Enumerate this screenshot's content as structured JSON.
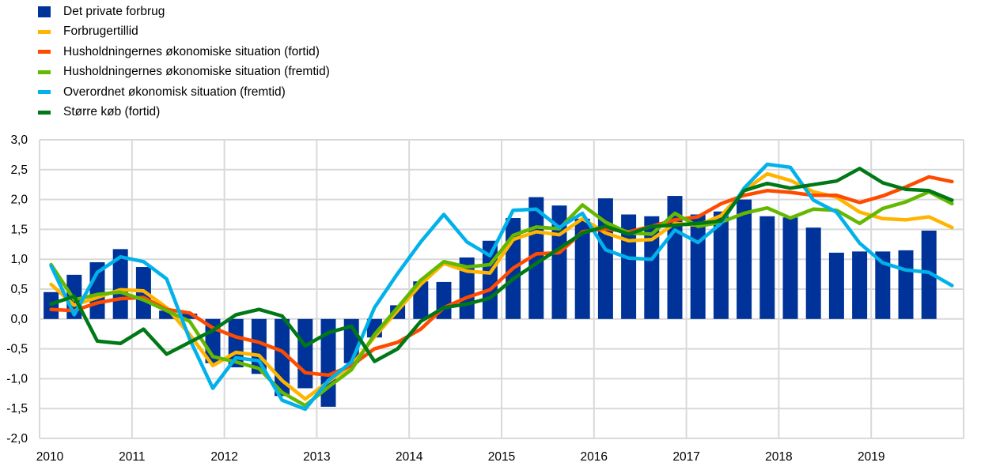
{
  "chart_data": {
    "type": "bar+line",
    "title": "",
    "xlabel": "",
    "ylabel": "",
    "ylim": [
      -2.0,
      3.0
    ],
    "yticks": [
      "3,0",
      "2,5",
      "2,0",
      "1,5",
      "1,0",
      "0,5",
      "0,0",
      "-0,5",
      "-1,0",
      "-1,5",
      "-2,0"
    ],
    "ytick_values": [
      3,
      2.5,
      2,
      1.5,
      1,
      0.5,
      0,
      -0.5,
      -1,
      -1.5,
      -2
    ],
    "xticks": [
      "2010",
      "2011",
      "2012",
      "2013",
      "2014",
      "2015",
      "2016",
      "2017",
      "2018",
      "2019"
    ],
    "x_frequency": "quarterly",
    "x_start": "2010Q1",
    "grid": true,
    "legend_placement": "top-left",
    "bar_series": {
      "name": "Det private forbrug",
      "color": "#003399",
      "values": [
        0.45,
        0.74,
        0.95,
        1.17,
        0.87,
        0.14,
        0.09,
        -0.74,
        -0.81,
        -0.92,
        -1.29,
        -1.16,
        -1.47,
        -0.74,
        -0.31,
        0.23,
        0.63,
        0.62,
        1.03,
        1.31,
        1.69,
        2.04,
        1.9,
        1.68,
        2.02,
        1.75,
        1.72,
        2.06,
        1.75,
        1.8,
        2.0,
        1.72,
        1.7,
        1.53,
        1.11,
        1.13,
        1.13,
        1.15,
        1.48
      ]
    },
    "series": [
      {
        "name": "Forbrugertillid",
        "color": "#FFB400",
        "values": [
          0.58,
          0.23,
          0.36,
          0.49,
          0.47,
          0.19,
          -0.26,
          -0.78,
          -0.56,
          -0.61,
          -1.03,
          -1.34,
          -1.05,
          -0.78,
          -0.3,
          0.14,
          0.58,
          0.93,
          0.8,
          0.77,
          1.33,
          1.46,
          1.41,
          1.68,
          1.44,
          1.31,
          1.33,
          1.6,
          1.57,
          1.73,
          2.15,
          2.43,
          2.32,
          2.13,
          2.04,
          1.79,
          1.68,
          1.66,
          1.71,
          1.53
        ]
      },
      {
        "name": "Husholdningernes økonomiske situation (fortid)",
        "color": "#FF4B00",
        "values": [
          0.16,
          0.14,
          0.27,
          0.34,
          0.36,
          0.16,
          0.1,
          -0.15,
          -0.3,
          -0.39,
          -0.54,
          -0.9,
          -0.94,
          -0.78,
          -0.5,
          -0.39,
          -0.17,
          0.19,
          0.36,
          0.49,
          0.85,
          1.09,
          1.11,
          1.46,
          1.51,
          1.46,
          1.55,
          1.66,
          1.71,
          1.93,
          2.07,
          2.15,
          2.12,
          2.07,
          2.07,
          1.95,
          2.06,
          2.21,
          2.38,
          2.3
        ]
      },
      {
        "name": "Husholdningernes økonomiske situation (fremtid)",
        "color": "#65B800",
        "values": [
          0.91,
          0.32,
          0.41,
          0.45,
          0.32,
          0.14,
          -0.04,
          -0.63,
          -0.72,
          -0.83,
          -1.23,
          -1.45,
          -1.14,
          -0.85,
          -0.26,
          0.19,
          0.65,
          0.96,
          0.87,
          0.91,
          1.4,
          1.54,
          1.51,
          1.91,
          1.62,
          1.44,
          1.42,
          1.77,
          1.55,
          1.62,
          1.77,
          1.86,
          1.69,
          1.84,
          1.82,
          1.6,
          1.85,
          1.96,
          2.13,
          1.93
        ]
      },
      {
        "name": "Overordnet økonomisk situation (fremtid)",
        "color": "#00B1EA",
        "values": [
          0.89,
          0.07,
          0.78,
          1.04,
          0.96,
          0.67,
          -0.34,
          -1.16,
          -0.65,
          -0.7,
          -1.36,
          -1.51,
          -1.03,
          -0.72,
          0.19,
          0.76,
          1.29,
          1.75,
          1.29,
          1.06,
          1.82,
          1.84,
          1.53,
          1.77,
          1.16,
          1.02,
          1.0,
          1.49,
          1.28,
          1.6,
          2.19,
          2.59,
          2.54,
          1.99,
          1.79,
          1.27,
          0.94,
          0.82,
          0.78,
          0.56
        ]
      },
      {
        "name": "Større køb (fortid)",
        "color": "#007816",
        "values": [
          0.25,
          0.38,
          -0.37,
          -0.41,
          -0.17,
          -0.59,
          -0.39,
          -0.19,
          0.07,
          0.16,
          0.05,
          -0.45,
          -0.23,
          -0.12,
          -0.71,
          -0.5,
          -0.04,
          0.19,
          0.25,
          0.35,
          0.67,
          0.93,
          1.18,
          1.44,
          1.55,
          1.42,
          1.55,
          1.57,
          1.6,
          1.64,
          2.15,
          2.27,
          2.19,
          2.25,
          2.31,
          2.52,
          2.28,
          2.17,
          2.15,
          1.99
        ]
      }
    ]
  }
}
